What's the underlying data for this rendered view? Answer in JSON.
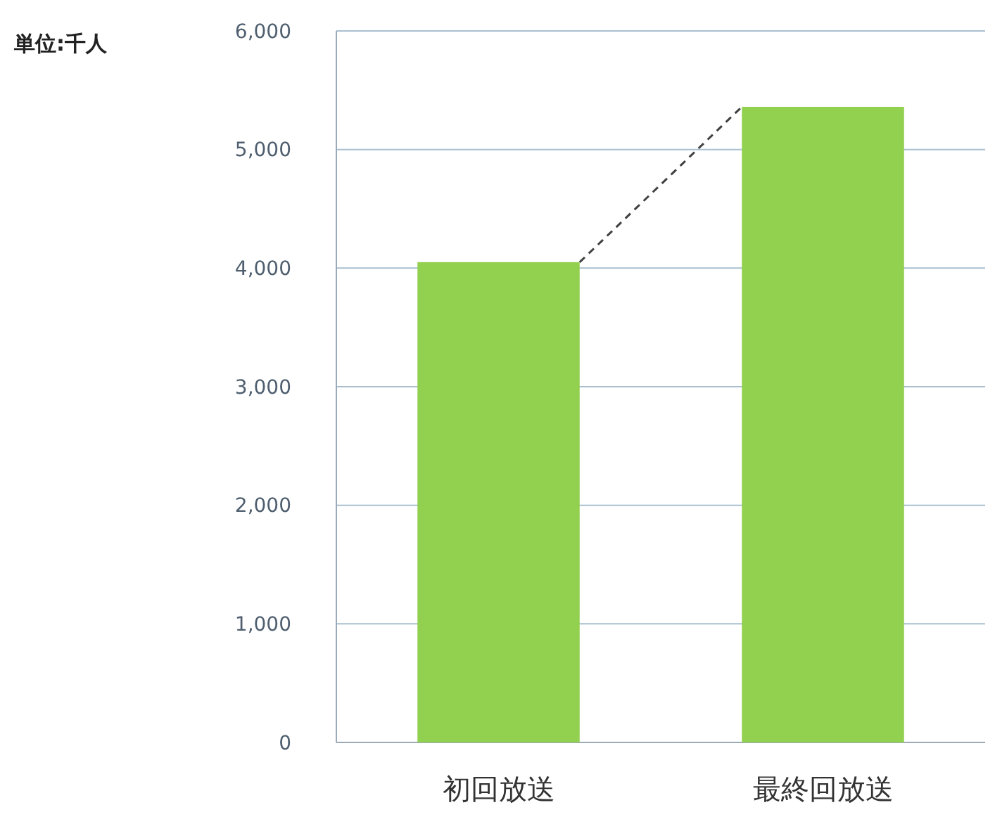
{
  "chart_data": {
    "type": "bar",
    "categories": [
      "初回放送",
      "最終回放送"
    ],
    "values": [
      4050,
      5360
    ],
    "color": "#92d050",
    "ylim": [
      0,
      6000
    ],
    "yticks": [
      {
        "value": 0,
        "label": "0"
      },
      {
        "value": 1000,
        "label": "1,000"
      },
      {
        "value": 2000,
        "label": "2,000"
      },
      {
        "value": 3000,
        "label": "3,000"
      },
      {
        "value": 4000,
        "label": "4,000"
      },
      {
        "value": 5000,
        "label": "5,000"
      },
      {
        "value": 6000,
        "label": "6,000"
      }
    ],
    "grid": "y",
    "annotations": [
      "単位:千人"
    ]
  }
}
